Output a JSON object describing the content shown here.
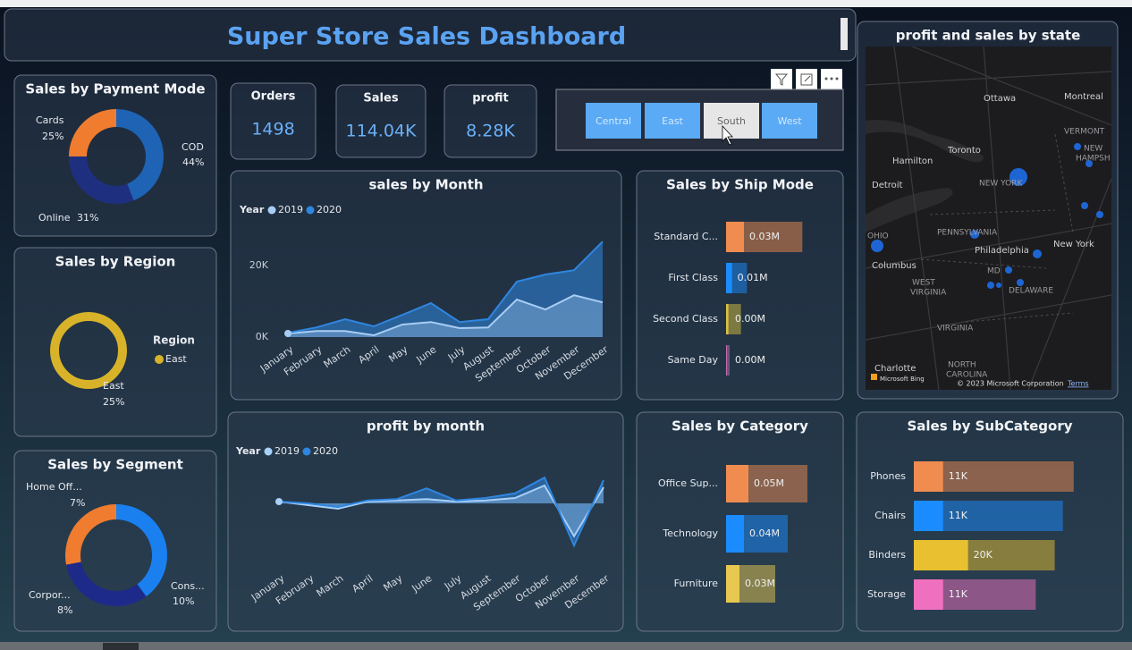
{
  "header": {
    "title": "Super Store Sales Dashboard"
  },
  "kpis": [
    {
      "label": "Orders",
      "value": "1498"
    },
    {
      "label": "Sales",
      "value": "114.04K"
    },
    {
      "label": "profit",
      "value": "8.28K"
    }
  ],
  "slicer": {
    "options": [
      "Central",
      "East",
      "South",
      "West"
    ],
    "selected": "South"
  },
  "map": {
    "title": "profit and sales by state",
    "places": [
      "Ottawa",
      "Montreal",
      "Toronto",
      "Hamilton",
      "VERMONT",
      "NEW",
      "HAMPSH",
      "Detroit",
      "NEW YORK",
      "PENNSYLVANIA",
      "Philadelphia",
      "New York",
      "OHIO",
      "Columbus",
      "WEST",
      "VIRGINIA",
      "MD",
      "DELAWARE",
      "VIRGINIA",
      "NORTH",
      "CAROLINA",
      "Charlotte"
    ],
    "brand": "Microsoft Bing",
    "attribution": "© 2023 Microsoft Corporation",
    "terms": "Terms"
  },
  "chart_data": [
    {
      "type": "donut",
      "title": "Sales by Payment Mode",
      "categories": [
        "COD",
        "Online",
        "Cards"
      ],
      "values": [
        44,
        31,
        25
      ],
      "value_labels": [
        "44%",
        "31%",
        "25%"
      ],
      "colors": [
        "#1f63b5",
        "#1f2f80",
        "#f07c30"
      ]
    },
    {
      "type": "donut",
      "title": "Sales by Region",
      "legend_title": "Region",
      "categories": [
        "East"
      ],
      "values": [
        25
      ],
      "value_labels": [
        "25%"
      ],
      "colors": [
        "#d8b32a"
      ]
    },
    {
      "type": "donut",
      "title": "Sales by Segment",
      "categories": [
        "Cons...",
        "Corpor...",
        "Home Off..."
      ],
      "values": [
        10,
        8,
        7
      ],
      "value_labels": [
        "10%",
        "8%",
        "7%"
      ],
      "colors": [
        "#1a80f0",
        "#1e2a8a",
        "#f07c30"
      ]
    },
    {
      "type": "area",
      "title": "sales by Month",
      "legend_title": "Year",
      "categories": [
        "January",
        "February",
        "March",
        "April",
        "May",
        "June",
        "July",
        "August",
        "September",
        "October",
        "November",
        "December"
      ],
      "series": [
        {
          "name": "2019",
          "color": "#a8cdf5",
          "values": [
            1000,
            1700,
            1700,
            500,
            3500,
            4200,
            2500,
            2700,
            10500,
            7700,
            11700,
            9700
          ]
        },
        {
          "name": "2020",
          "color": "#2f86e0",
          "values": [
            1200,
            2700,
            5000,
            3000,
            6200,
            9500,
            4200,
            5000,
            15500,
            17500,
            18700,
            26700
          ]
        }
      ],
      "ylim": [
        0,
        28000
      ],
      "yticks": [
        {
          "value": 0,
          "label": "0K"
        },
        {
          "value": 20000,
          "label": "20K"
        }
      ]
    },
    {
      "type": "hbar",
      "title": "Sales by Ship Mode",
      "categories": [
        "Standard C...",
        "First Class",
        "Second Class",
        "Same Day"
      ],
      "values": [
        30000,
        10000,
        4000,
        1500
      ],
      "value_labels": [
        "0.03M",
        "0.01M",
        "0.00M",
        "0.00M"
      ],
      "total_values": [
        128000,
        35000,
        25000,
        6000
      ],
      "colors": [
        "#f08c50",
        "#1a8cff",
        "#d8c040",
        "#c070b0"
      ],
      "xlim": [
        0,
        150000
      ]
    },
    {
      "type": "area",
      "title": "profit by month",
      "legend_title": "Year",
      "categories": [
        "January",
        "February",
        "March",
        "April",
        "May",
        "June",
        "July",
        "August",
        "September",
        "October",
        "November",
        "December"
      ],
      "series": [
        {
          "name": "2019",
          "color": "#a8d0f8",
          "values": [
            50,
            -50,
            -150,
            50,
            80,
            120,
            50,
            80,
            150,
            500,
            -920,
            450
          ]
        },
        {
          "name": "2020",
          "color": "#2f86e0",
          "values": [
            50,
            0,
            -100,
            80,
            120,
            420,
            80,
            150,
            280,
            720,
            -1180,
            650
          ]
        }
      ],
      "ylim": [
        -1500,
        1000
      ]
    },
    {
      "type": "hbar",
      "title": "Sales by Category",
      "categories": [
        "Office Sup...",
        "Technology",
        "Furniture"
      ],
      "values": [
        50000,
        40000,
        30000
      ],
      "value_labels": [
        "0.05M",
        "0.04M",
        "0.03M"
      ],
      "total_values": [
        182000,
        138000,
        110000
      ],
      "colors": [
        "#f08c50",
        "#1a8cff",
        "#e8c850"
      ],
      "xlim": [
        0,
        200000
      ]
    },
    {
      "type": "hbar",
      "title": "Sales by SubCategory",
      "categories": [
        "Phones",
        "Chairs",
        "Binders",
        "Storage"
      ],
      "values": [
        10800,
        10800,
        20000,
        10800
      ],
      "value_labels": [
        "11K",
        "11K",
        "20K",
        "11K"
      ],
      "total_values": [
        59000,
        55000,
        52000,
        45000
      ],
      "colors": [
        "#f08c50",
        "#1a8cff",
        "#e8c030",
        "#f070c0"
      ],
      "xlim": [
        0,
        66000
      ]
    }
  ]
}
